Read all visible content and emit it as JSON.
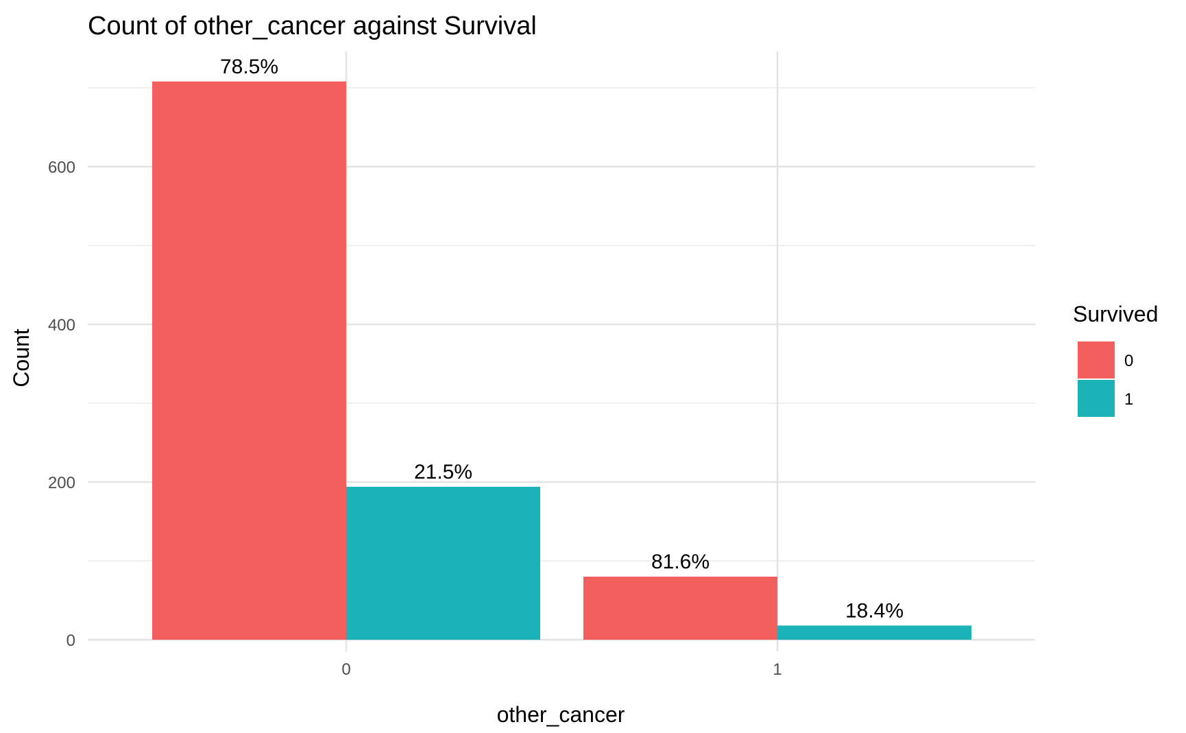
{
  "chart_data": {
    "type": "bar",
    "title": "Count of other_cancer against Survival",
    "xlabel": "other_cancer",
    "ylabel": "Count",
    "categories": [
      "0",
      "1"
    ],
    "series": [
      {
        "name": "0",
        "color": "#F25F5C",
        "values": [
          708,
          80
        ],
        "labels": [
          "78.5%",
          "81.6%"
        ]
      },
      {
        "name": "1",
        "color": "#1BB3B7",
        "values": [
          194,
          18
        ],
        "labels": [
          "21.5%",
          "18.4%"
        ]
      }
    ],
    "ylim": [
      0,
      740
    ],
    "yticks": [
      0,
      200,
      400,
      600
    ],
    "grid": true,
    "legend": {
      "title": "Survived",
      "position": "right"
    }
  }
}
